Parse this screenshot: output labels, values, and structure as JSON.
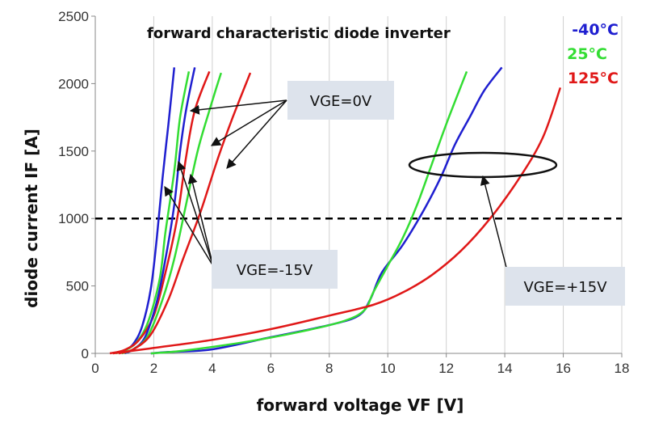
{
  "chart_data": {
    "type": "line",
    "title": "forward characteristic diode inverter",
    "xlabel": "forward voltage VF [V]",
    "ylabel": "diode current IF [A]",
    "xlim": [
      0,
      18
    ],
    "ylim": [
      0,
      2500
    ],
    "x_ticks": [
      "0",
      "2",
      "4",
      "6",
      "8",
      "10",
      "12",
      "14",
      "16",
      "18"
    ],
    "y_ticks": [
      "0",
      "500",
      "1000",
      "1500",
      "2000",
      "2500"
    ],
    "grid": "vertical",
    "reference_line": {
      "y": 1000,
      "style": "dashed"
    },
    "legend": {
      "placement": "top-right",
      "entries": [
        {
          "label": "-40°C",
          "color": "#1f1fd0"
        },
        {
          "label": "25°C",
          "color": "#33dd33"
        },
        {
          "label": "125°C",
          "color": "#e01818"
        }
      ]
    },
    "series": [
      {
        "group": "VGE=-15V",
        "color": "#1f1fd0",
        "points": [
          [
            0.8,
            0
          ],
          [
            1.0,
            20
          ],
          [
            1.3,
            70
          ],
          [
            1.6,
            200
          ],
          [
            1.9,
            480
          ],
          [
            2.1,
            850
          ],
          [
            2.3,
            1300
          ],
          [
            2.5,
            1700
          ],
          [
            2.7,
            2120
          ]
        ]
      },
      {
        "group": "VGE=-15V",
        "color": "#33dd33",
        "points": [
          [
            0.7,
            0
          ],
          [
            1.0,
            20
          ],
          [
            1.4,
            80
          ],
          [
            1.8,
            230
          ],
          [
            2.2,
            550
          ],
          [
            2.4,
            900
          ],
          [
            2.7,
            1350
          ],
          [
            2.9,
            1750
          ],
          [
            3.2,
            2090
          ]
        ]
      },
      {
        "group": "VGE=-15V",
        "color": "#e01818",
        "points": [
          [
            0.5,
            0
          ],
          [
            1.0,
            25
          ],
          [
            1.5,
            100
          ],
          [
            2.0,
            280
          ],
          [
            2.4,
            600
          ],
          [
            2.8,
            1000
          ],
          [
            3.1,
            1450
          ],
          [
            3.4,
            1800
          ],
          [
            3.9,
            2090
          ]
        ]
      },
      {
        "group": "VGE=0V",
        "color": "#1f1fd0",
        "points": [
          [
            1.0,
            0
          ],
          [
            1.3,
            30
          ],
          [
            1.7,
            120
          ],
          [
            2.1,
            380
          ],
          [
            2.4,
            700
          ],
          [
            2.7,
            1100
          ],
          [
            2.9,
            1500
          ],
          [
            3.1,
            1800
          ],
          [
            3.4,
            2120
          ]
        ]
      },
      {
        "group": "VGE=0V",
        "color": "#33dd33",
        "points": [
          [
            0.9,
            0
          ],
          [
            1.3,
            30
          ],
          [
            1.8,
            130
          ],
          [
            2.3,
            400
          ],
          [
            2.7,
            700
          ],
          [
            3.1,
            1100
          ],
          [
            3.5,
            1500
          ],
          [
            3.9,
            1800
          ],
          [
            4.3,
            2080
          ]
        ]
      },
      {
        "group": "VGE=0V",
        "color": "#e01818",
        "points": [
          [
            0.8,
            0
          ],
          [
            1.3,
            30
          ],
          [
            1.9,
            140
          ],
          [
            2.5,
            400
          ],
          [
            3.0,
            700
          ],
          [
            3.6,
            1050
          ],
          [
            4.2,
            1450
          ],
          [
            4.7,
            1750
          ],
          [
            5.3,
            2080
          ]
        ]
      },
      {
        "group": "VGE=+15V",
        "color": "#1f1fd0",
        "points": [
          [
            1.9,
            0
          ],
          [
            2.5,
            10
          ],
          [
            4.0,
            30
          ],
          [
            6.0,
            120
          ],
          [
            8.0,
            210
          ],
          [
            9.0,
            280
          ],
          [
            9.4,
            400
          ],
          [
            9.8,
            600
          ],
          [
            10.5,
            800
          ],
          [
            11.2,
            1050
          ],
          [
            11.8,
            1300
          ],
          [
            12.3,
            1550
          ],
          [
            12.8,
            1750
          ],
          [
            13.3,
            1950
          ],
          [
            13.9,
            2120
          ]
        ]
      },
      {
        "group": "VGE=+15V",
        "color": "#33dd33",
        "points": [
          [
            1.9,
            0
          ],
          [
            3.0,
            20
          ],
          [
            5.0,
            80
          ],
          [
            7.0,
            160
          ],
          [
            8.5,
            240
          ],
          [
            9.2,
            320
          ],
          [
            9.5,
            450
          ],
          [
            10.0,
            650
          ],
          [
            10.5,
            850
          ],
          [
            11.0,
            1100
          ],
          [
            11.5,
            1400
          ],
          [
            12.0,
            1700
          ],
          [
            12.5,
            1980
          ],
          [
            12.7,
            2090
          ]
        ]
      },
      {
        "group": "VGE=+15V",
        "color": "#e01818",
        "points": [
          [
            0.6,
            0
          ],
          [
            2.0,
            40
          ],
          [
            4.0,
            100
          ],
          [
            6.0,
            180
          ],
          [
            8.0,
            280
          ],
          [
            9.5,
            360
          ],
          [
            10.5,
            450
          ],
          [
            11.5,
            580
          ],
          [
            12.5,
            760
          ],
          [
            13.5,
            1000
          ],
          [
            14.5,
            1300
          ],
          [
            15.3,
            1600
          ],
          [
            15.9,
            1970
          ]
        ]
      }
    ],
    "annotations": [
      {
        "label": "VGE=0V"
      },
      {
        "label": "VGE=-15V"
      },
      {
        "label": "VGE=+15V"
      }
    ]
  }
}
